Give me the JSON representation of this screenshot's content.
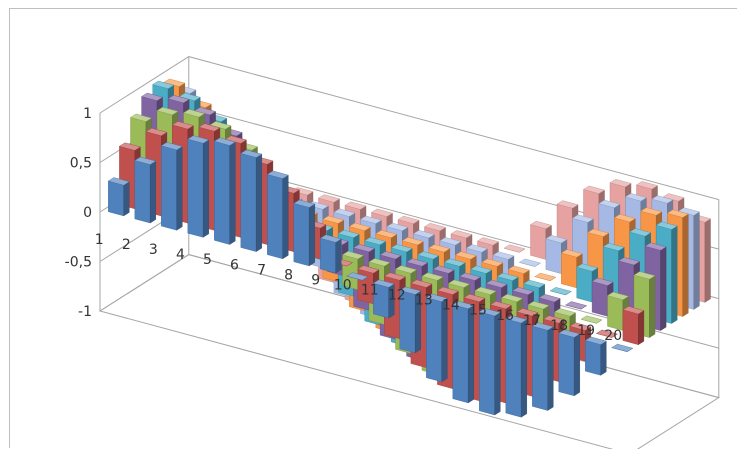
{
  "chart_data": {
    "type": "bar",
    "subtype": "3d-column",
    "title": "",
    "xlabel": "",
    "ylabel": "",
    "ylim": [
      -1,
      1
    ],
    "y_ticks": [
      "-1",
      "-0,5",
      "0",
      "0,5",
      "1"
    ],
    "categories": [
      "1",
      "2",
      "3",
      "4",
      "5",
      "6",
      "7",
      "8",
      "9",
      "10",
      "11",
      "12",
      "13",
      "14",
      "15",
      "16",
      "17",
      "18",
      "19",
      "20"
    ],
    "gridlines": true,
    "legend": "none",
    "series": [
      {
        "color": "#4f81bd",
        "values": [
          0.31,
          0.59,
          0.81,
          0.95,
          1.0,
          0.95,
          0.81,
          0.59,
          0.31,
          0.0,
          -0.31,
          -0.59,
          -0.81,
          -0.95,
          -1.0,
          -0.95,
          -0.81,
          -0.59,
          -0.31,
          0.0
        ]
      },
      {
        "color": "#c0504d",
        "values": [
          0.59,
          0.81,
          0.95,
          1.0,
          0.95,
          0.81,
          0.59,
          0.31,
          0.0,
          -0.31,
          -0.59,
          -0.81,
          -0.95,
          -1.0,
          -0.95,
          -0.81,
          -0.59,
          -0.31,
          0.0,
          0.31
        ]
      },
      {
        "color": "#9bbb59",
        "values": [
          0.81,
          0.95,
          1.0,
          0.95,
          0.81,
          0.59,
          0.31,
          0.0,
          -0.31,
          -0.59,
          -0.81,
          -0.95,
          -1.0,
          -0.95,
          -0.81,
          -0.59,
          -0.31,
          0.0,
          0.31,
          0.59
        ]
      },
      {
        "color": "#8064a2",
        "values": [
          0.95,
          1.0,
          0.95,
          0.81,
          0.59,
          0.31,
          0.0,
          -0.31,
          -0.59,
          -0.81,
          -0.95,
          -1.0,
          -0.95,
          -0.81,
          -0.59,
          -0.31,
          0.0,
          0.31,
          0.59,
          0.81
        ]
      },
      {
        "color": "#4bacc6",
        "values": [
          1.0,
          0.95,
          0.81,
          0.59,
          0.31,
          0.0,
          -0.31,
          -0.59,
          -0.81,
          -0.95,
          -1.0,
          -0.95,
          -0.81,
          -0.59,
          -0.31,
          0.0,
          0.31,
          0.59,
          0.81,
          0.95
        ]
      },
      {
        "color": "#f79646",
        "values": [
          0.95,
          0.81,
          0.59,
          0.31,
          0.0,
          -0.31,
          -0.59,
          -0.81,
          -0.95,
          -1.0,
          -0.95,
          -0.81,
          -0.59,
          -0.31,
          0.0,
          0.31,
          0.59,
          0.81,
          0.95,
          1.0
        ]
      },
      {
        "color": "#a5b9e4",
        "values": [
          0.81,
          0.59,
          0.31,
          0.0,
          -0.31,
          -0.59,
          -0.81,
          -0.95,
          -1.0,
          -0.95,
          -0.81,
          -0.59,
          -0.31,
          0.0,
          0.31,
          0.59,
          0.81,
          0.95,
          1.0,
          0.95
        ]
      },
      {
        "color": "#e6a1a1",
        "values": [
          0.59,
          0.31,
          0.0,
          -0.31,
          -0.59,
          -0.81,
          -0.95,
          -1.0,
          -0.95,
          -0.81,
          -0.59,
          -0.31,
          0.0,
          0.31,
          0.59,
          0.81,
          0.95,
          1.0,
          0.95,
          0.81
        ]
      }
    ]
  }
}
